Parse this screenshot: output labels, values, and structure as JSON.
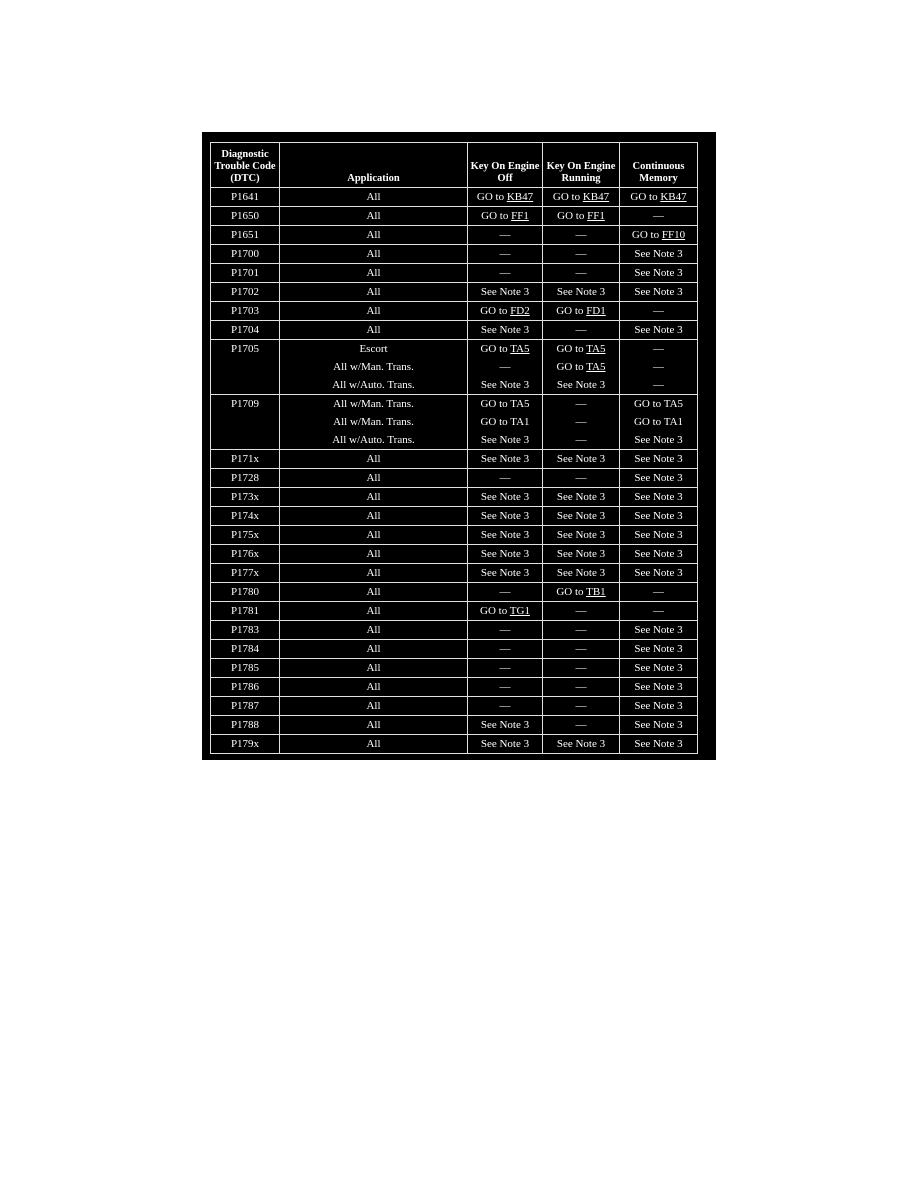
{
  "headers": [
    "Diagnostic Trouble Code (DTC)",
    "Application",
    "Key On Engine Off",
    "Key On Engine Running",
    "Continuous Memory"
  ],
  "rows": [
    {
      "code": "P1641",
      "lines": [
        [
          "All",
          {
            "text": "GO to ",
            "link": "KB47"
          },
          {
            "text": "GO to ",
            "link": "KB47"
          },
          {
            "text": "GO to ",
            "link": "KB47"
          }
        ]
      ]
    },
    {
      "code": "P1650",
      "lines": [
        [
          "All",
          {
            "text": "GO to ",
            "link": "FF1"
          },
          {
            "text": "GO to ",
            "link": "FF1"
          },
          "—"
        ]
      ]
    },
    {
      "code": "P1651",
      "lines": [
        [
          "All",
          "—",
          "—",
          {
            "text": "GO to ",
            "link": "FF10"
          }
        ]
      ]
    },
    {
      "code": "P1700",
      "lines": [
        [
          "All",
          "—",
          "—",
          "See Note 3"
        ]
      ]
    },
    {
      "code": "P1701",
      "lines": [
        [
          "All",
          "—",
          "—",
          "See Note 3"
        ]
      ]
    },
    {
      "code": "P1702",
      "lines": [
        [
          "All",
          "See Note 3",
          "See Note 3",
          "See Note 3"
        ]
      ]
    },
    {
      "code": "P1703",
      "lines": [
        [
          "All",
          {
            "text": "GO to ",
            "link": "FD2"
          },
          {
            "text": "GO to ",
            "link": "FD1"
          },
          "—"
        ]
      ]
    },
    {
      "code": "P1704",
      "lines": [
        [
          "All",
          "See Note 3",
          "—",
          "See Note 3"
        ]
      ]
    },
    {
      "code": "P1705",
      "lines": [
        [
          "Escort",
          {
            "text": "GO to ",
            "link": "TA5"
          },
          {
            "text": "GO to ",
            "link": "TA5"
          },
          "—"
        ],
        [
          "All w/Man. Trans.",
          "—",
          {
            "text": "GO to ",
            "link": "TA5"
          },
          "—"
        ],
        [
          "All w/Auto. Trans.",
          "See Note 3",
          "See Note 3",
          "—"
        ]
      ]
    },
    {
      "code": "P1709",
      "lines": [
        [
          "All w/Man. Trans.",
          "GO to TA5",
          "—",
          "GO to TA5"
        ],
        [
          "All w/Man. Trans.",
          "GO to TA1",
          "—",
          "GO to TA1"
        ],
        [
          "All w/Auto. Trans.",
          "See Note 3",
          "—",
          "See Note 3"
        ]
      ]
    },
    {
      "code": "P171x",
      "lines": [
        [
          "All",
          "See Note 3",
          "See Note 3",
          "See Note 3"
        ]
      ]
    },
    {
      "code": "P1728",
      "lines": [
        [
          "All",
          "—",
          "—",
          "See Note 3"
        ]
      ]
    },
    {
      "code": "P173x",
      "lines": [
        [
          "All",
          "See Note 3",
          "See Note 3",
          "See Note 3"
        ]
      ]
    },
    {
      "code": "P174x",
      "lines": [
        [
          "All",
          "See Note 3",
          "See Note 3",
          "See Note 3"
        ]
      ]
    },
    {
      "code": "P175x",
      "lines": [
        [
          "All",
          "See Note 3",
          "See Note 3",
          "See Note 3"
        ]
      ]
    },
    {
      "code": "P176x",
      "lines": [
        [
          "All",
          "See Note 3",
          "See Note 3",
          "See Note 3"
        ]
      ]
    },
    {
      "code": "P177x",
      "lines": [
        [
          "All",
          "See Note 3",
          "See Note 3",
          "See Note 3"
        ]
      ]
    },
    {
      "code": "P1780",
      "lines": [
        [
          "All",
          "—",
          {
            "text": "GO to ",
            "link": "TB1"
          },
          "—"
        ]
      ]
    },
    {
      "code": "P1781",
      "lines": [
        [
          "All",
          {
            "text": "GO to ",
            "link": "TG1"
          },
          "—",
          "—"
        ]
      ]
    },
    {
      "code": "P1783",
      "lines": [
        [
          "All",
          "—",
          "—",
          "See Note 3"
        ]
      ]
    },
    {
      "code": "P1784",
      "lines": [
        [
          "All",
          "—",
          "—",
          "See Note 3"
        ]
      ]
    },
    {
      "code": "P1785",
      "lines": [
        [
          "All",
          "—",
          "—",
          "See Note 3"
        ]
      ]
    },
    {
      "code": "P1786",
      "lines": [
        [
          "All",
          "—",
          "—",
          "See Note 3"
        ]
      ]
    },
    {
      "code": "P1787",
      "lines": [
        [
          "All",
          "—",
          "—",
          "See Note 3"
        ]
      ]
    },
    {
      "code": "P1788",
      "lines": [
        [
          "All",
          "See Note 3",
          "—",
          "See Note 3"
        ]
      ]
    },
    {
      "code": "P179x",
      "lines": [
        [
          "All",
          "See Note 3",
          "See Note 3",
          "See Note 3"
        ]
      ]
    }
  ]
}
